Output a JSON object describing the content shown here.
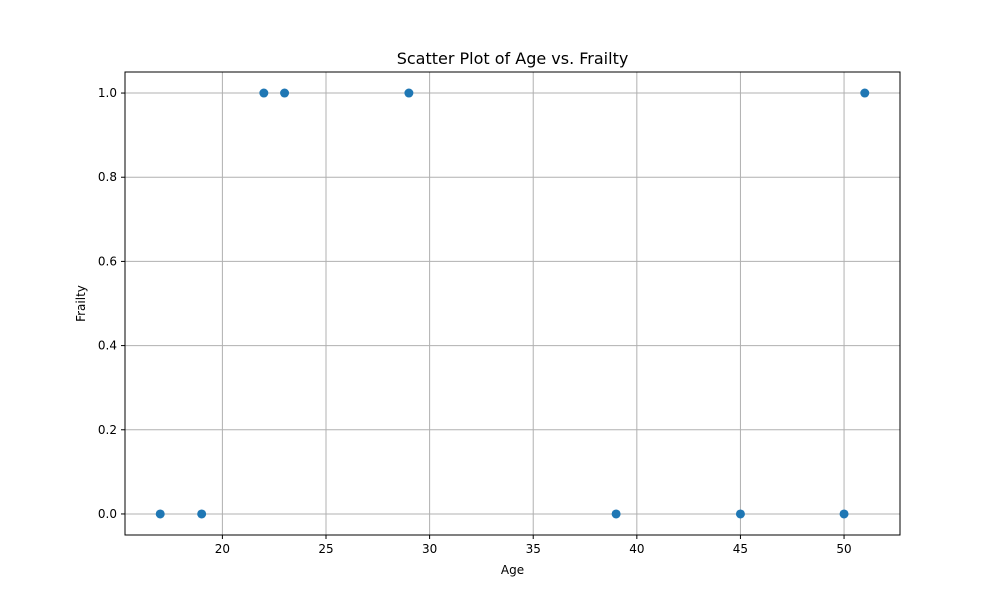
{
  "chart_data": {
    "type": "scatter",
    "title": "Scatter Plot of Age vs. Frailty",
    "xlabel": "Age",
    "ylabel": "Frailty",
    "xlim": [
      15.3,
      52.7
    ],
    "ylim": [
      -0.05,
      1.05
    ],
    "xticks": [
      20,
      25,
      30,
      35,
      40,
      45,
      50
    ],
    "yticks": [
      0.0,
      0.2,
      0.4,
      0.6,
      0.8,
      1.0
    ],
    "grid": true,
    "marker_color": "#1f77b4",
    "points": [
      {
        "x": 17,
        "y": 0
      },
      {
        "x": 19,
        "y": 0
      },
      {
        "x": 22,
        "y": 1
      },
      {
        "x": 23,
        "y": 1
      },
      {
        "x": 29,
        "y": 1
      },
      {
        "x": 39,
        "y": 0
      },
      {
        "x": 45,
        "y": 0
      },
      {
        "x": 50,
        "y": 0
      },
      {
        "x": 51,
        "y": 1
      }
    ]
  }
}
